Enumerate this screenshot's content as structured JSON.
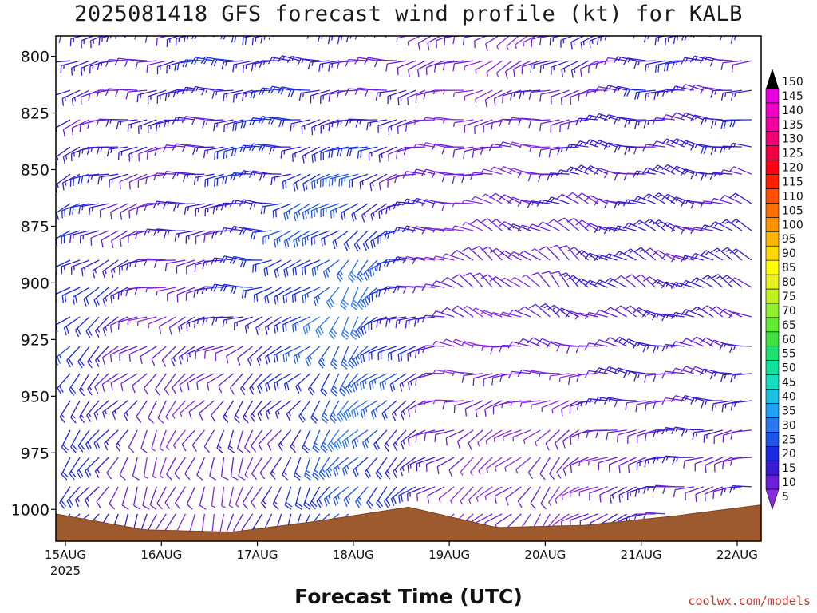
{
  "chart_data": {
    "type": "wind-barb-profile",
    "title": "2025081418 GFS forecast wind profile (kt) for KALB",
    "xlabel": "Forecast Time (UTC)",
    "ylabel": "",
    "x_ticks": [
      "15AUG",
      "16AUG",
      "17AUG",
      "18AUG",
      "19AUG",
      "20AUG",
      "21AUG",
      "22AUG"
    ],
    "x_sublabel": "2025",
    "x_range_days": [
      -0.1,
      7.25
    ],
    "y_ticks": [
      800,
      825,
      850,
      875,
      900,
      925,
      950,
      975,
      1000
    ],
    "y_range_hpa": [
      791,
      1014
    ],
    "levels_hpa": [
      790,
      802,
      815,
      828,
      840,
      852,
      865,
      877,
      890,
      902,
      915,
      928,
      940,
      952,
      965,
      977,
      990,
      1002
    ],
    "colorbar": {
      "unit": "kt",
      "values": [
        5,
        10,
        15,
        20,
        25,
        30,
        35,
        40,
        45,
        50,
        55,
        60,
        65,
        70,
        75,
        80,
        85,
        90,
        95,
        100,
        105,
        110,
        115,
        120,
        125,
        130,
        135,
        140,
        145,
        150
      ],
      "colors": [
        "#8a2be2",
        "#6a1fd8",
        "#3a1ad0",
        "#1a2be0",
        "#1d55e8",
        "#2a78f0",
        "#1fa2f5",
        "#19c0e0",
        "#19dcc0",
        "#10e0a0",
        "#20e070",
        "#40e040",
        "#60ea30",
        "#90f030",
        "#c0f020",
        "#e8f020",
        "#ffff00",
        "#ffd800",
        "#ffb400",
        "#ff9200",
        "#ff7000",
        "#ff5000",
        "#ff2000",
        "#ff0010",
        "#f00040",
        "#f00070",
        "#f000a0",
        "#f000c8",
        "#e800e0",
        "#ff00ff"
      ]
    },
    "wind_kt": {
      "level_800": [
        [
          260,
          12
        ],
        [
          265,
          14
        ],
        [
          270,
          18
        ],
        [
          275,
          12
        ],
        [
          250,
          8
        ],
        [
          240,
          10
        ],
        [
          270,
          15
        ]
      ],
      "level_900": [
        [
          230,
          22
        ],
        [
          260,
          8
        ],
        [
          270,
          18
        ],
        [
          210,
          30
        ],
        [
          300,
          8
        ],
        [
          320,
          10
        ],
        [
          300,
          14
        ]
      ],
      "level_975": [
        [
          220,
          20
        ],
        [
          200,
          8
        ],
        [
          200,
          10
        ],
        [
          220,
          28
        ],
        [
          240,
          8
        ],
        [
          220,
          6
        ],
        [
          260,
          12
        ]
      ]
    },
    "terrain_hpa": [
      1002,
      1009,
      1010,
      1005,
      999,
      1008,
      1007,
      1003,
      998
    ]
  },
  "credit": "coolwx.com/models"
}
